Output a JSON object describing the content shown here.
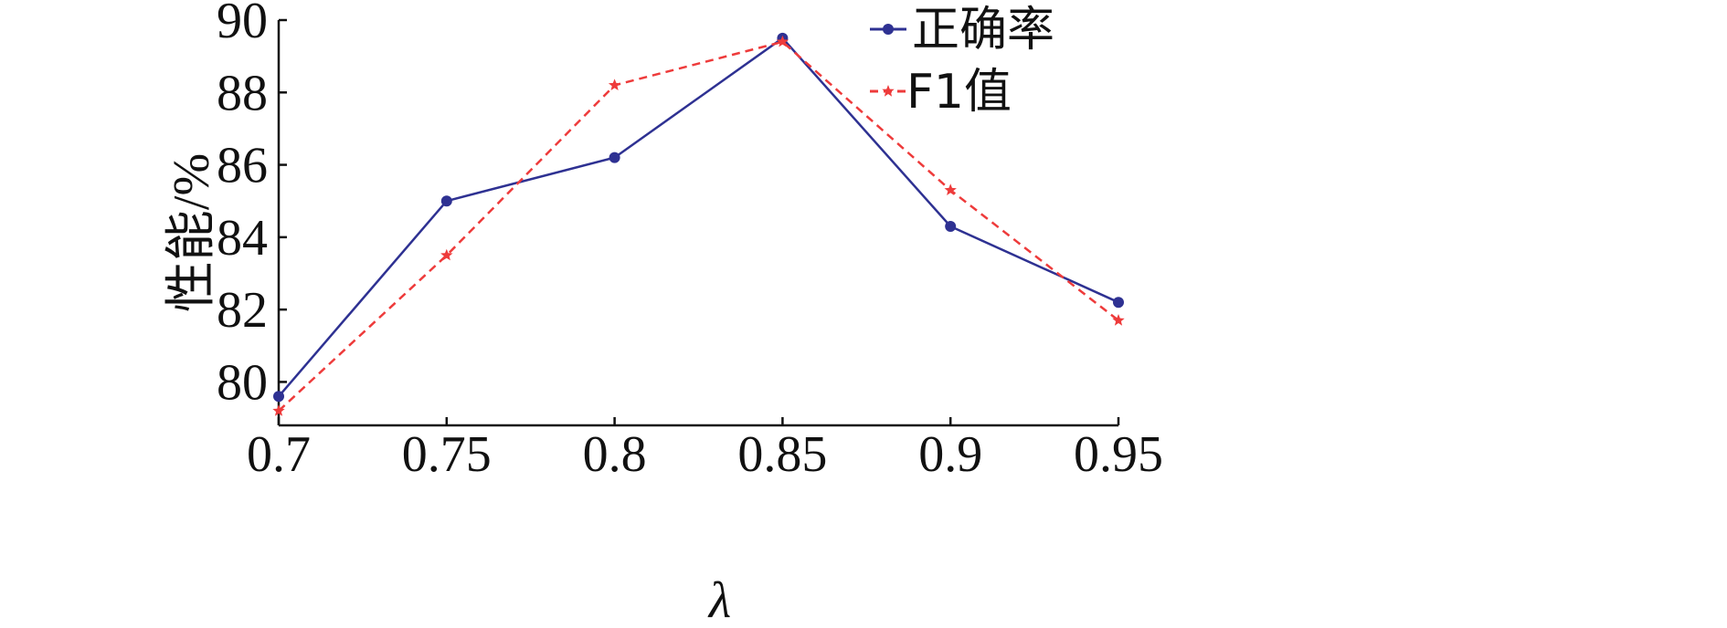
{
  "chart_data": {
    "type": "line",
    "title": "",
    "xlabel": "λ",
    "ylabel": "性能/%",
    "x": [
      0.7,
      0.75,
      0.8,
      0.85,
      0.9,
      0.95
    ],
    "x_tick_labels": [
      "0.7",
      "0.75",
      "0.8",
      "0.85",
      "0.9",
      "0.95"
    ],
    "y_ticks": [
      80,
      82,
      84,
      86,
      88,
      90
    ],
    "y_tick_labels": [
      "80",
      "82",
      "84",
      "86",
      "88",
      "90"
    ],
    "xlim": [
      0.7,
      0.95
    ],
    "ylim": [
      78.8,
      90
    ],
    "grid": false,
    "legend_position": "top-right",
    "series": [
      {
        "name": "正确率",
        "values": [
          79.6,
          85.0,
          86.2,
          89.5,
          84.3,
          82.2
        ],
        "color": "#2e3192",
        "line_style": "solid",
        "marker": "circle"
      },
      {
        "name": "F1值",
        "values": [
          79.2,
          83.5,
          88.2,
          89.4,
          85.3,
          81.7
        ],
        "color": "#ee3b3b",
        "line_style": "dashed",
        "marker": "star"
      }
    ]
  }
}
